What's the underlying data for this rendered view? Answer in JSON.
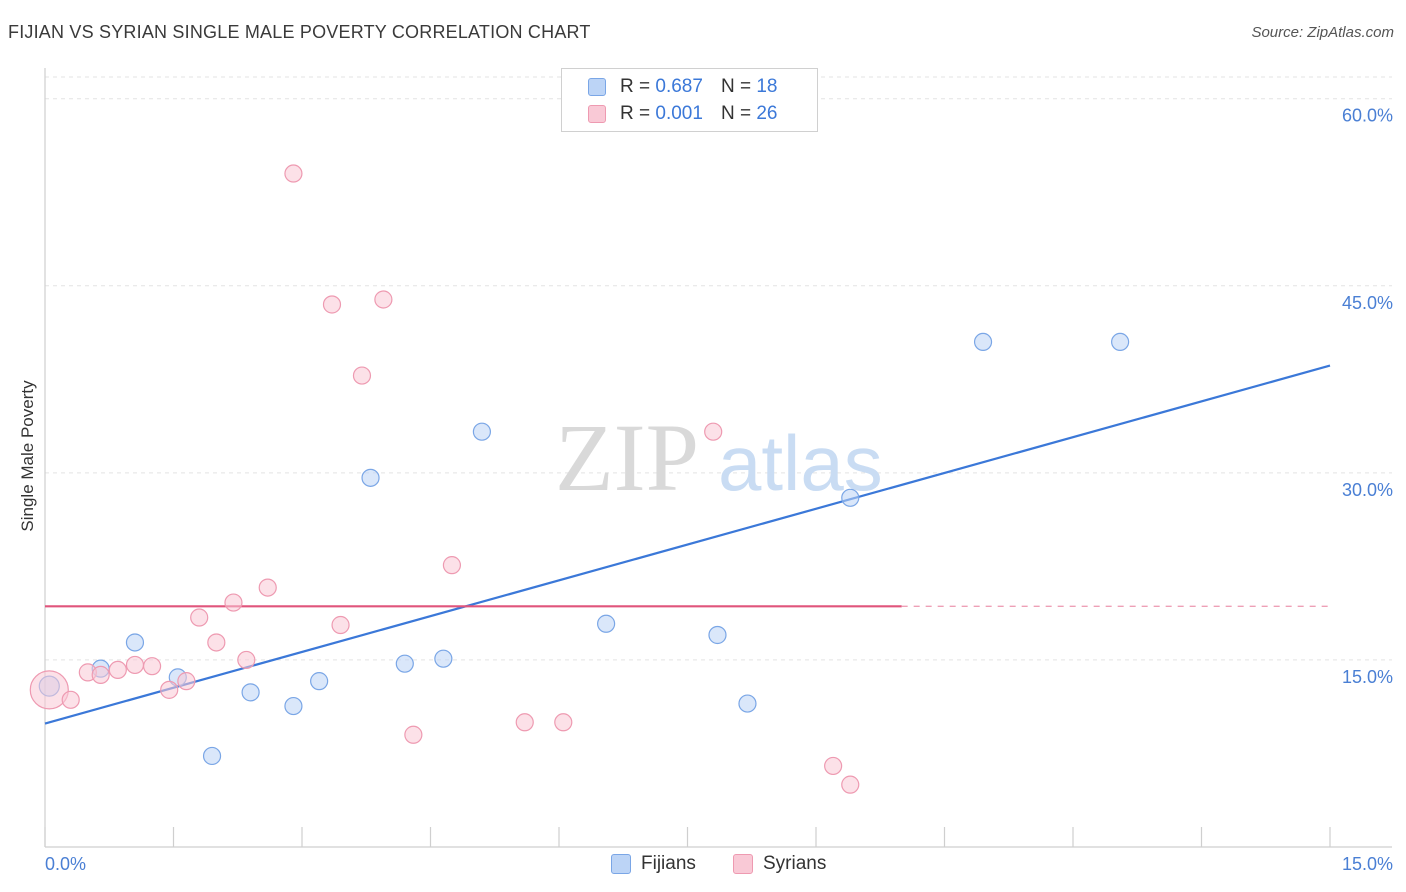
{
  "title": "FIJIAN VS SYRIAN SINGLE MALE POVERTY CORRELATION CHART",
  "source": "Source: ZipAtlas.com",
  "watermark": {
    "zip": "ZIP",
    "atlas": "atlas"
  },
  "legend": {
    "r_label": "R =",
    "n_label": "N =",
    "items": [
      {
        "name": "Fijians",
        "r": "0.687",
        "n": "18",
        "fill": "#bcd4f6",
        "stroke": "#7aa6e6"
      },
      {
        "name": "Syrians",
        "r": "0.001",
        "n": "26",
        "fill": "#f9c9d6",
        "stroke": "#ee9ab1"
      }
    ]
  },
  "chart_data": {
    "type": "scatter",
    "title": "FIJIAN VS SYRIAN SINGLE MALE POVERTY CORRELATION CHART",
    "xlabel": "",
    "ylabel": "Single Male Poverty",
    "xlim": [
      0,
      15
    ],
    "ylim": [
      0,
      60
    ],
    "x_tick_labels": [
      "0.0%",
      "15.0%"
    ],
    "y_ticks": [
      15,
      30,
      45,
      60
    ],
    "y_tick_labels": [
      "15.0%",
      "30.0%",
      "45.0%",
      "60.0%"
    ],
    "grid": "horizontal dashed",
    "legend_position": "top-center",
    "series": [
      {
        "name": "Fijians",
        "color": "#3b78d8",
        "points": [
          [
            0.05,
            12.9
          ],
          [
            0.65,
            14.3
          ],
          [
            1.05,
            16.4
          ],
          [
            1.55,
            13.6
          ],
          [
            1.95,
            7.3
          ],
          [
            2.4,
            12.4
          ],
          [
            2.9,
            11.3
          ],
          [
            3.2,
            13.3
          ],
          [
            3.8,
            29.6
          ],
          [
            4.2,
            14.7
          ],
          [
            4.65,
            15.1
          ],
          [
            5.1,
            33.3
          ],
          [
            6.55,
            17.9
          ],
          [
            7.85,
            17.0
          ],
          [
            8.2,
            11.5
          ],
          [
            9.4,
            28.0
          ],
          [
            10.95,
            40.5
          ],
          [
            12.55,
            40.5
          ]
        ],
        "trend": {
          "x": [
            0,
            15
          ],
          "y": [
            9.9,
            38.6
          ]
        }
      },
      {
        "name": "Syrians",
        "color": "#e0557c",
        "points": [
          [
            0.05,
            12.6
          ],
          [
            0.3,
            11.8
          ],
          [
            0.5,
            14.0
          ],
          [
            0.65,
            13.8
          ],
          [
            0.85,
            14.2
          ],
          [
            1.05,
            14.6
          ],
          [
            1.25,
            14.5
          ],
          [
            1.45,
            12.6
          ],
          [
            1.65,
            13.3
          ],
          [
            1.8,
            18.4
          ],
          [
            2.0,
            16.4
          ],
          [
            2.2,
            19.6
          ],
          [
            2.35,
            15.0
          ],
          [
            2.6,
            20.8
          ],
          [
            2.9,
            54.0
          ],
          [
            3.35,
            43.5
          ],
          [
            3.45,
            17.8
          ],
          [
            3.7,
            37.8
          ],
          [
            3.95,
            43.9
          ],
          [
            4.3,
            9.0
          ],
          [
            4.75,
            22.6
          ],
          [
            5.6,
            10.0
          ],
          [
            6.05,
            10.0
          ],
          [
            7.8,
            33.3
          ],
          [
            9.2,
            6.5
          ],
          [
            9.4,
            5.0
          ]
        ],
        "trend": {
          "x": [
            0,
            10
          ],
          "y": [
            19.3,
            19.3
          ]
        }
      }
    ]
  }
}
